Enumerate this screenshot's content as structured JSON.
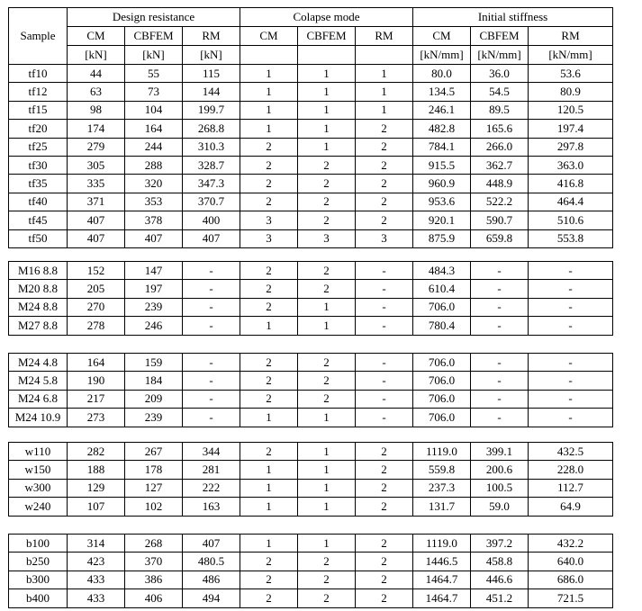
{
  "header": {
    "sample": "Sample",
    "groups": [
      "Design resistance",
      "Colapse mode",
      "Initial stiffness"
    ],
    "methods": [
      "CM",
      "CBFEM",
      "RM",
      "CM",
      "CBFEM",
      "RM",
      "CM",
      "CBFEM",
      "RM"
    ],
    "units": [
      "[kN]",
      "[kN]",
      "[kN]",
      "",
      "",
      "",
      "[kN/mm]",
      "[kN/mm]",
      "[kN/mm]"
    ]
  },
  "groups": [
    {
      "rows": [
        [
          "tf10",
          "44",
          "55",
          "115",
          "1",
          "1",
          "1",
          "80.0",
          "36.0",
          "53.6"
        ],
        [
          "tf12",
          "63",
          "73",
          "144",
          "1",
          "1",
          "1",
          "134.5",
          "54.5",
          "80.9"
        ],
        [
          "tf15",
          "98",
          "104",
          "199.7",
          "1",
          "1",
          "1",
          "246.1",
          "89.5",
          "120.5"
        ],
        [
          "tf20",
          "174",
          "164",
          "268.8",
          "1",
          "1",
          "2",
          "482.8",
          "165.6",
          "197.4"
        ],
        [
          "tf25",
          "279",
          "244",
          "310.3",
          "2",
          "1",
          "2",
          "784.1",
          "266.0",
          "297.8"
        ],
        [
          "tf30",
          "305",
          "288",
          "328.7",
          "2",
          "2",
          "2",
          "915.5",
          "362.7",
          "363.0"
        ],
        [
          "tf35",
          "335",
          "320",
          "347.3",
          "2",
          "2",
          "2",
          "960.9",
          "448.9",
          "416.8"
        ],
        [
          "tf40",
          "371",
          "353",
          "370.7",
          "2",
          "2",
          "2",
          "953.6",
          "522.2",
          "464.4"
        ],
        [
          "tf45",
          "407",
          "378",
          "400",
          "3",
          "2",
          "2",
          "920.1",
          "590.7",
          "510.6"
        ],
        [
          "tf50",
          "407",
          "407",
          "407",
          "3",
          "3",
          "3",
          "875.9",
          "659.8",
          "553.8"
        ]
      ]
    },
    {
      "rows": [
        [
          "M16 8.8",
          "152",
          "147",
          "-",
          "2",
          "2",
          "-",
          "484.3",
          "-",
          "-"
        ],
        [
          "M20 8.8",
          "205",
          "197",
          "-",
          "2",
          "2",
          "-",
          "610.4",
          "-",
          "-"
        ],
        [
          "M24 8.8",
          "270",
          "239",
          "-",
          "2",
          "1",
          "-",
          "706.0",
          "-",
          "-"
        ],
        [
          "M27 8.8",
          "278",
          "246",
          "-",
          "1",
          "1",
          "-",
          "780.4",
          "-",
          "-"
        ]
      ]
    },
    {
      "rows": [
        [
          "M24 4.8",
          "164",
          "159",
          "-",
          "2",
          "2",
          "-",
          "706.0",
          "-",
          "-"
        ],
        [
          "M24 5.8",
          "190",
          "184",
          "-",
          "2",
          "2",
          "-",
          "706.0",
          "-",
          "-"
        ],
        [
          "M24 6.8",
          "217",
          "209",
          "-",
          "2",
          "2",
          "-",
          "706.0",
          "-",
          "-"
        ],
        [
          "M24 10.9",
          "273",
          "239",
          "-",
          "1",
          "1",
          "-",
          "706.0",
          "-",
          "-"
        ]
      ]
    },
    {
      "rows": [
        [
          "w110",
          "282",
          "267",
          "344",
          "2",
          "1",
          "2",
          "1119.0",
          "399.1",
          "432.5"
        ],
        [
          "w150",
          "188",
          "178",
          "281",
          "1",
          "1",
          "2",
          "559.8",
          "200.6",
          "228.0"
        ],
        [
          "w300",
          "129",
          "127",
          "222",
          "1",
          "1",
          "2",
          "237.3",
          "100.5",
          "112.7"
        ],
        [
          "w240",
          "107",
          "102",
          "163",
          "1",
          "1",
          "2",
          "131.7",
          "59.0",
          "64.9"
        ]
      ]
    },
    {
      "rows": [
        [
          "b100",
          "314",
          "268",
          "407",
          "1",
          "1",
          "2",
          "1119.0",
          "397.2",
          "432.2"
        ],
        [
          "b250",
          "423",
          "370",
          "480.5",
          "2",
          "2",
          "2",
          "1446.5",
          "458.8",
          "640.0"
        ],
        [
          "b300",
          "433",
          "386",
          "486",
          "2",
          "2",
          "2",
          "1464.7",
          "446.6",
          "686.0"
        ],
        [
          "b400",
          "433",
          "406",
          "494",
          "2",
          "2",
          "2",
          "1464.7",
          "451.2",
          "721.5"
        ]
      ]
    }
  ]
}
